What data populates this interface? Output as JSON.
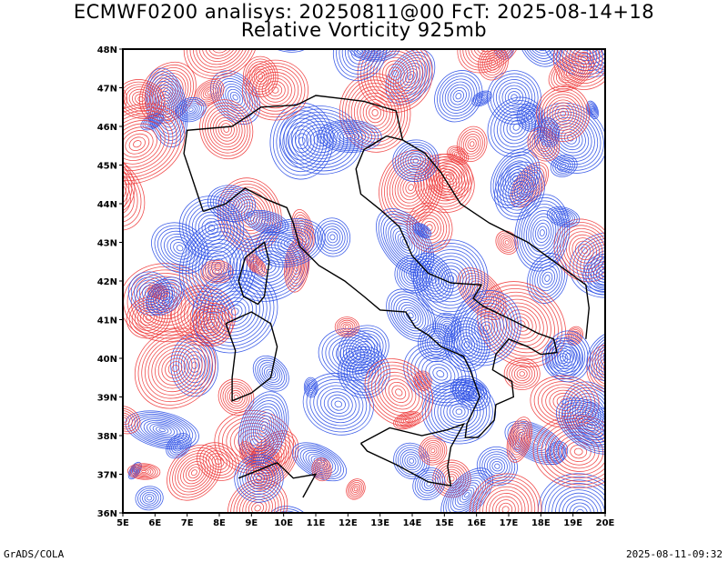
{
  "title": {
    "line1": "ECMWF0200 analisys: 20250811@00 FcT: 2025-08-14+18",
    "line2": "Relative Vorticity 925mb"
  },
  "footer": {
    "left": "GrADS/COLA",
    "right": "2025-08-11-09:32"
  },
  "map": {
    "lon_range": [
      5,
      20
    ],
    "lat_range": [
      36,
      48
    ],
    "lon_ticks": [
      "5E",
      "6E",
      "7E",
      "8E",
      "9E",
      "10E",
      "11E",
      "12E",
      "13E",
      "14E",
      "15E",
      "16E",
      "17E",
      "18E",
      "19E",
      "20E"
    ],
    "lat_ticks": [
      "36N",
      "37N",
      "38N",
      "39N",
      "40N",
      "41N",
      "42N",
      "43N",
      "44N",
      "45N",
      "46N",
      "47N",
      "48N"
    ],
    "positive_color": "#ee3b3b",
    "negative_color": "#2b4fe6",
    "coast_color": "#000000"
  }
}
